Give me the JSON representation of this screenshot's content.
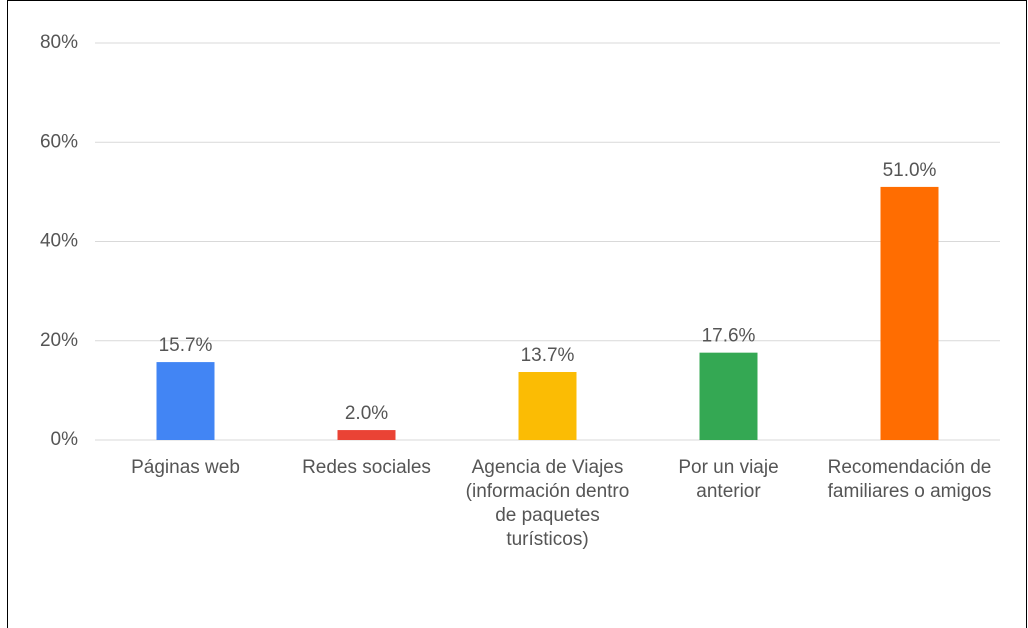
{
  "chart_data": {
    "type": "bar",
    "categories": [
      "Páginas web",
      "Redes sociales",
      "Agencia de Viajes (información dentro de paquetes turísticos)",
      "Por un viaje anterior",
      "Recomendación de familiares o amigos"
    ],
    "values": [
      15.7,
      2.0,
      13.7,
      17.6,
      51.0
    ],
    "value_labels": [
      "15.7%",
      "2.0%",
      "13.7%",
      "17.6%",
      "51.0%"
    ],
    "colors": [
      "#4285f4",
      "#ea4335",
      "#fbbc04",
      "#34a853",
      "#ff6d01"
    ],
    "ylim": [
      0,
      80
    ],
    "yticks": [
      {
        "value": 0,
        "label": "0%"
      },
      {
        "value": 20,
        "label": "20%"
      },
      {
        "value": 40,
        "label": "40%"
      },
      {
        "value": 60,
        "label": "60%"
      },
      {
        "value": 80,
        "label": "80%"
      }
    ],
    "grid": true
  }
}
